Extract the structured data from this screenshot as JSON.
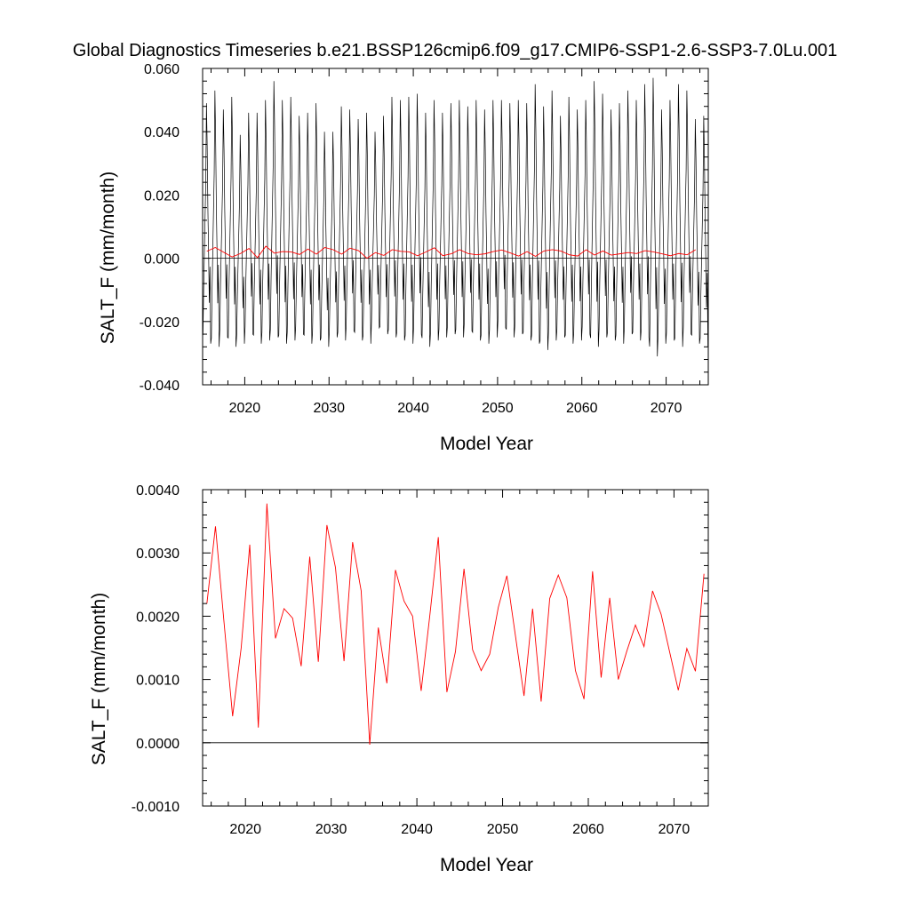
{
  "title": "Global Diagnostics Timeseries b.e21.BSSP126cmip6.f09_g17.CMIP6-SSP1-2.6-SSP3-7.0Lu.001",
  "chart_data": [
    {
      "type": "line",
      "xlabel": "Model Year",
      "ylabel": "SALT_F (mm/month)",
      "xlim": [
        2015,
        2075
      ],
      "ylim": [
        -0.04,
        0.06
      ],
      "xticks": [
        2020,
        2030,
        2040,
        2050,
        2060,
        2070
      ],
      "yticks": [
        "-0.040",
        "-0.020",
        "0.000",
        "0.020",
        "0.040",
        "0.060"
      ],
      "yticks_values": [
        -0.04,
        -0.02,
        0,
        0.02,
        0.04,
        0.06
      ],
      "reference_line": 0,
      "series": [
        {
          "color": "#000000",
          "style": "monthly",
          "start_year": 2015,
          "monthly_pattern_fraction": [
            -0.7,
            -0.45,
            -0.2,
            0.05,
            0.3,
            0.85,
            0.55,
            0.1,
            -0.2,
            -0.55,
            -0.3,
            -0.6
          ],
          "annual_max": [
            0.049,
            0.053,
            0.047,
            0.051,
            0.039,
            0.046,
            0.046,
            0.05,
            0.056,
            0.05,
            0.051,
            0.045,
            0.046,
            0.049,
            0.04,
            0.04,
            0.048,
            0.047,
            0.044,
            0.046,
            0.04,
            0.045,
            0.051,
            0.05,
            0.051,
            0.052,
            0.046,
            0.05,
            0.046,
            0.049,
            0.05,
            0.048,
            0.05,
            0.047,
            0.05,
            0.05,
            0.049,
            0.05,
            0.049,
            0.055,
            0.048,
            0.053,
            0.045,
            0.051,
            0.047,
            0.05,
            0.056,
            0.052,
            0.047,
            0.049,
            0.053,
            0.05,
            0.055,
            0.057,
            0.047,
            0.05,
            0.055,
            0.053,
            0.044,
            0.045
          ],
          "annual_min": [
            -0.027,
            -0.028,
            -0.025,
            -0.028,
            -0.027,
            -0.024,
            -0.027,
            -0.026,
            -0.025,
            -0.027,
            -0.026,
            -0.024,
            -0.027,
            -0.026,
            -0.028,
            -0.025,
            -0.026,
            -0.023,
            -0.026,
            -0.027,
            -0.022,
            -0.024,
            -0.025,
            -0.026,
            -0.027,
            -0.024,
            -0.028,
            -0.026,
            -0.025,
            -0.024,
            -0.025,
            -0.023,
            -0.026,
            -0.027,
            -0.025,
            -0.022,
            -0.025,
            -0.024,
            -0.026,
            -0.027,
            -0.029,
            -0.026,
            -0.025,
            -0.027,
            -0.026,
            -0.024,
            -0.028,
            -0.025,
            -0.026,
            -0.027,
            -0.024,
            -0.026,
            -0.025,
            -0.031,
            -0.027,
            -0.026,
            -0.028,
            -0.024,
            -0.027,
            -0.028
          ]
        },
        {
          "color": "#ff0000",
          "style": "annual",
          "x": [
            2015.5,
            2016.5,
            2017.5,
            2018.5,
            2019.5,
            2020.5,
            2021.5,
            2022.5,
            2023.5,
            2024.5,
            2025.5,
            2026.5,
            2027.5,
            2028.5,
            2029.5,
            2030.5,
            2031.5,
            2032.5,
            2033.5,
            2034.5,
            2035.5,
            2036.5,
            2037.5,
            2038.5,
            2039.5,
            2040.5,
            2041.5,
            2042.5,
            2043.5,
            2044.5,
            2045.5,
            2046.5,
            2047.5,
            2048.5,
            2049.5,
            2050.5,
            2051.5,
            2052.5,
            2053.5,
            2054.5,
            2055.5,
            2056.5,
            2057.5,
            2058.5,
            2059.5,
            2060.5,
            2061.5,
            2062.5,
            2063.5,
            2064.5,
            2065.5,
            2066.5,
            2067.5,
            2068.5,
            2069.5,
            2070.5,
            2071.5,
            2072.5,
            2073.5
          ],
          "y": [
            0.0022,
            0.0034,
            0.0019,
            0.0004,
            0.0015,
            0.0031,
            0.0002,
            0.0038,
            0.0016,
            0.0021,
            0.002,
            0.0012,
            0.0029,
            0.0013,
            0.0034,
            0.0027,
            0.0013,
            0.0032,
            0.0024,
            -0.0,
            0.0018,
            0.0009,
            0.0027,
            0.0022,
            0.002,
            0.0008,
            0.002,
            0.0033,
            0.0008,
            0.0014,
            0.0027,
            0.0015,
            0.0011,
            0.0014,
            0.0021,
            0.0026,
            0.0017,
            0.0007,
            0.0021,
            0.0006,
            0.0023,
            0.0027,
            0.0023,
            0.0011,
            0.0007,
            0.0027,
            0.001,
            0.0023,
            0.001,
            0.0014,
            0.0018,
            0.0015,
            0.0024,
            0.002,
            0.0014,
            0.0008,
            0.0015,
            0.0011,
            0.0027
          ]
        }
      ]
    },
    {
      "type": "line",
      "xlabel": "Model Year",
      "ylabel": "SALT_F (mm/month)",
      "xlim": [
        2015,
        2074
      ],
      "ylim": [
        -0.001,
        0.004
      ],
      "xticks": [
        2020,
        2030,
        2040,
        2050,
        2060,
        2070
      ],
      "yticks": [
        "-0.0010",
        "0.0000",
        "0.0010",
        "0.0020",
        "0.0030",
        "0.0040"
      ],
      "yticks_values": [
        -0.001,
        0,
        0.001,
        0.002,
        0.003,
        0.004
      ],
      "reference_line": 0,
      "series": [
        {
          "color": "#ff0000",
          "style": "annual",
          "x": [
            2015.5,
            2016.5,
            2017.5,
            2018.5,
            2019.5,
            2020.5,
            2021.5,
            2022.5,
            2023.5,
            2024.5,
            2025.5,
            2026.5,
            2027.5,
            2028.5,
            2029.5,
            2030.5,
            2031.5,
            2032.5,
            2033.5,
            2034.5,
            2035.5,
            2036.5,
            2037.5,
            2038.5,
            2039.5,
            2040.5,
            2041.5,
            2042.5,
            2043.5,
            2044.5,
            2045.5,
            2046.5,
            2047.5,
            2048.5,
            2049.5,
            2050.5,
            2051.5,
            2052.5,
            2053.5,
            2054.5,
            2055.5,
            2056.5,
            2057.5,
            2058.5,
            2059.5,
            2060.5,
            2061.5,
            2062.5,
            2063.5,
            2064.5,
            2065.5,
            2066.5,
            2067.5,
            2068.5,
            2069.5,
            2070.5,
            2071.5,
            2072.5,
            2073.5
          ],
          "y": [
            0.0022,
            0.00342,
            0.0019,
            0.00042,
            0.0015,
            0.00313,
            0.00024,
            0.00378,
            0.00165,
            0.00212,
            0.00197,
            0.00121,
            0.00294,
            0.00128,
            0.00344,
            0.00277,
            0.00129,
            0.00317,
            0.0024,
            -3e-05,
            0.00182,
            0.00094,
            0.00273,
            0.00224,
            0.002,
            0.00082,
            0.002,
            0.00325,
            0.0008,
            0.00144,
            0.00275,
            0.00147,
            0.00114,
            0.0014,
            0.00214,
            0.00264,
            0.00169,
            0.00074,
            0.00212,
            0.00065,
            0.00228,
            0.00265,
            0.00229,
            0.00114,
            0.00069,
            0.00271,
            0.00103,
            0.00229,
            0.001,
            0.00145,
            0.00186,
            0.00152,
            0.0024,
            0.00203,
            0.00143,
            0.00083,
            0.00149,
            0.00113,
            0.00267
          ]
        }
      ]
    }
  ]
}
